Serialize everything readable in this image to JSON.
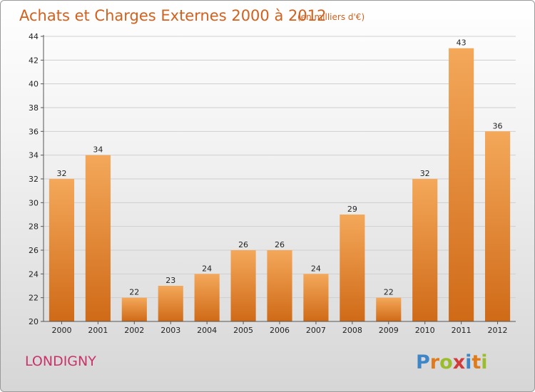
{
  "chart_data": {
    "type": "bar",
    "title": "Achats et Charges Externes 2000 à 2012",
    "subtitle": "(en milliers d'€)",
    "categories": [
      "2000",
      "2001",
      "2002",
      "2003",
      "2004",
      "2005",
      "2006",
      "2007",
      "2008",
      "2009",
      "2010",
      "2011",
      "2012"
    ],
    "values": [
      32,
      34,
      22,
      23,
      24,
      26,
      26,
      24,
      29,
      22,
      32,
      43,
      36
    ],
    "yticks": [
      20,
      22,
      24,
      26,
      28,
      30,
      32,
      34,
      36,
      38,
      40,
      42,
      44
    ],
    "ylim": [
      20,
      44
    ],
    "xlabel": "",
    "ylabel": "",
    "grid": true,
    "bar_color_top": "#f4a85a",
    "bar_color_bottom": "#cf6a17"
  },
  "footer": {
    "place": "LONDIGNY",
    "brand_letters": [
      {
        "ch": "P",
        "color": "#3f86c8"
      },
      {
        "ch": "r",
        "color": "#e07b1b"
      },
      {
        "ch": "o",
        "color": "#9bbd2c"
      },
      {
        "ch": "x",
        "color": "#d33a3a"
      },
      {
        "ch": "i",
        "color": "#3f86c8"
      },
      {
        "ch": "t",
        "color": "#e07b1b"
      },
      {
        "ch": "i",
        "color": "#9bbd2c"
      }
    ]
  }
}
